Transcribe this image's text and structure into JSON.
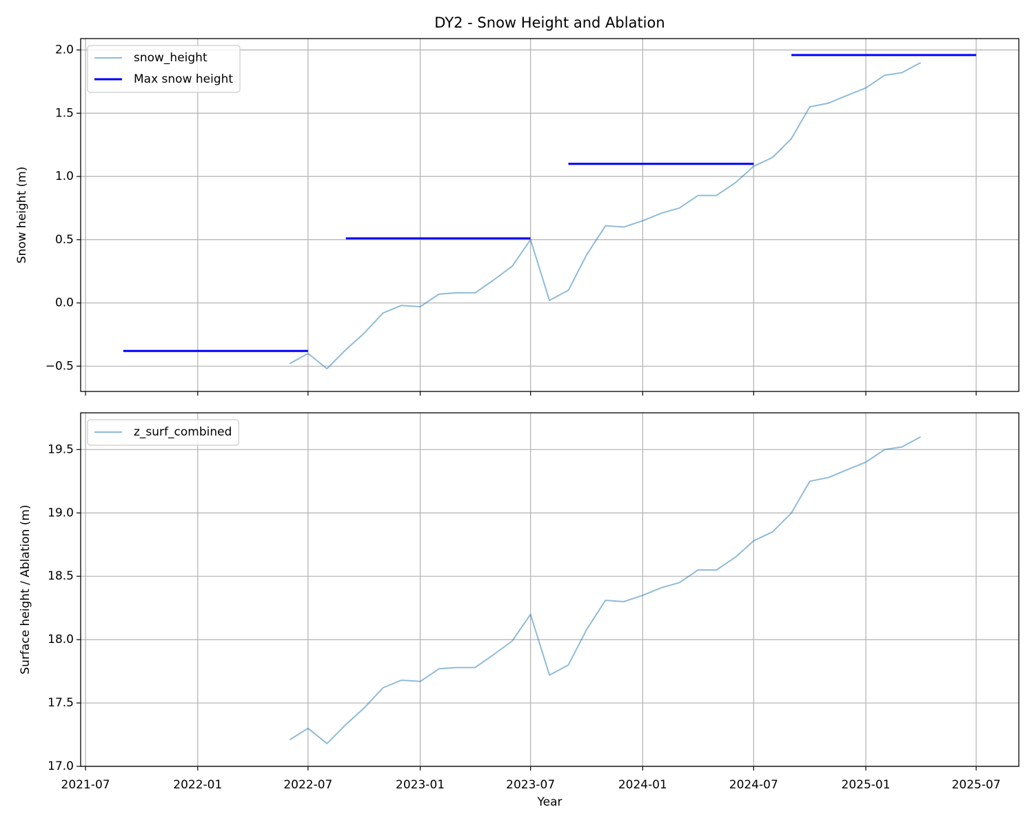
{
  "chart_data": [
    {
      "type": "line",
      "title": "DY2 - Snow Height and Ablation",
      "ylabel": "Snow height (m)",
      "xlim": [
        "2021-06-23",
        "2025-09-09"
      ],
      "xticks": [
        "2021-07",
        "2022-01",
        "2022-07",
        "2023-01",
        "2023-07",
        "2024-01",
        "2024-07",
        "2025-01",
        "2025-07"
      ],
      "ylim": [
        -0.7,
        2.09
      ],
      "yticks": [
        {
          "value": -0.5,
          "label": "−0.5"
        },
        {
          "value": 0,
          "label": "0.0"
        },
        0.5,
        {
          "value": 1,
          "label": "1.0"
        },
        1.5,
        {
          "value": 2,
          "label": "2.0"
        }
      ],
      "grid": true,
      "legend": "upper left",
      "series": [
        {
          "name": "snow_height",
          "color": "#1f77b4",
          "alpha": 0.5,
          "width": 2,
          "x": [
            "2022-06",
            "2022-07",
            "2022-08",
            "2022-09",
            "2022-10",
            "2022-11",
            "2022-12",
            "2023-01",
            "2023-02",
            "2023-03",
            "2023-04",
            "2023-05",
            "2023-06",
            "2023-07",
            "2023-08",
            "2023-09",
            "2023-10",
            "2023-11",
            "2023-12",
            "2024-01",
            "2024-02",
            "2024-03",
            "2024-04",
            "2024-05",
            "2024-06",
            "2024-07",
            "2024-08",
            "2024-09",
            "2024-10",
            "2024-11",
            "2024-12",
            "2025-01",
            "2025-02",
            "2025-03",
            "2025-04"
          ],
          "values": [
            -0.48,
            -0.4,
            -0.52,
            -0.37,
            -0.24,
            -0.08,
            -0.02,
            -0.03,
            0.07,
            0.08,
            0.08,
            0.18,
            0.29,
            0.5,
            0.02,
            0.1,
            0.38,
            0.61,
            0.6,
            0.65,
            0.71,
            0.75,
            0.85,
            0.85,
            0.95,
            1.08,
            1.15,
            1.3,
            1.55,
            1.58,
            1.64,
            1.7,
            1.8,
            1.82,
            1.9
          ]
        },
        {
          "name": "Max snow height",
          "color": "#0000ff",
          "alpha": 1,
          "width": 3,
          "x": [
            "2021-09",
            "2022-07",
            "2022-08",
            "2022-09",
            "2023-07",
            "2023-08",
            "2023-09",
            "2024-07",
            "2024-08",
            "2024-09",
            "2025-07"
          ],
          "values": [
            -0.38,
            -0.38,
            null,
            0.51,
            0.51,
            null,
            1.1,
            1.1,
            null,
            1.96,
            1.96
          ]
        }
      ]
    },
    {
      "type": "line",
      "xlabel": "Year",
      "ylabel": "Surface height / Ablation (m)",
      "xlim": [
        "2021-06-23",
        "2025-09-09"
      ],
      "xticks": [
        "2021-07",
        "2022-01",
        "2022-07",
        "2023-01",
        "2023-07",
        "2024-01",
        "2024-07",
        "2025-01",
        "2025-07"
      ],
      "ylim": [
        17.0,
        19.79
      ],
      "yticks": [
        {
          "value": 17,
          "label": "17.0"
        },
        17.5,
        {
          "value": 18,
          "label": "18.0"
        },
        18.5,
        {
          "value": 19,
          "label": "19.0"
        },
        19.5
      ],
      "grid": true,
      "legend": "upper left",
      "series": [
        {
          "name": "z_surf_combined",
          "color": "#1f77b4",
          "alpha": 0.5,
          "width": 2,
          "x": [
            "2022-06",
            "2022-07",
            "2022-08",
            "2022-09",
            "2022-10",
            "2022-11",
            "2022-12",
            "2023-01",
            "2023-02",
            "2023-03",
            "2023-04",
            "2023-05",
            "2023-06",
            "2023-07",
            "2023-08",
            "2023-09",
            "2023-10",
            "2023-11",
            "2023-12",
            "2024-01",
            "2024-02",
            "2024-03",
            "2024-04",
            "2024-05",
            "2024-06",
            "2024-07",
            "2024-08",
            "2024-09",
            "2024-10",
            "2024-11",
            "2024-12",
            "2025-01",
            "2025-02",
            "2025-03",
            "2025-04"
          ],
          "values": [
            17.21,
            17.3,
            17.18,
            17.33,
            17.46,
            17.62,
            17.68,
            17.67,
            17.77,
            17.78,
            17.78,
            17.88,
            17.99,
            18.2,
            17.72,
            17.8,
            18.08,
            18.31,
            18.3,
            18.35,
            18.41,
            18.45,
            18.55,
            18.55,
            18.65,
            18.78,
            18.85,
            19.0,
            19.25,
            19.28,
            19.34,
            19.4,
            19.5,
            19.52,
            19.6
          ]
        }
      ]
    }
  ]
}
